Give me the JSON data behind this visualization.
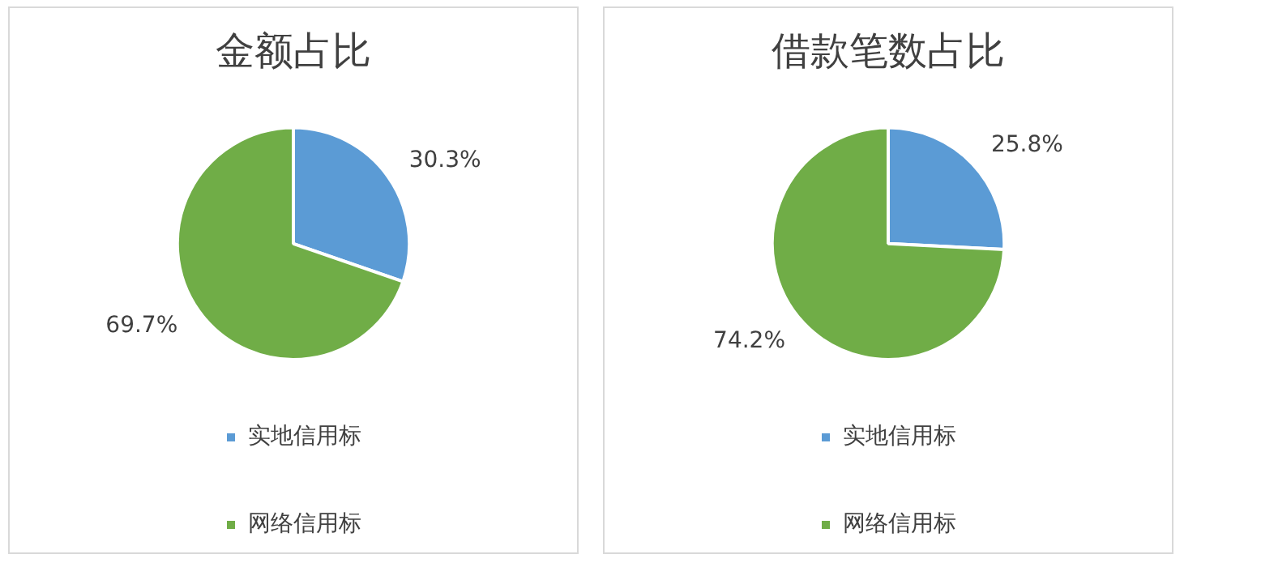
{
  "chart_data": [
    {
      "type": "pie",
      "title": "金额占比",
      "categories": [
        "实地信用标",
        "网络信用标"
      ],
      "values": [
        30.3,
        69.7
      ],
      "colors": [
        "#5b9bd5",
        "#70ad47"
      ],
      "value_labels": [
        "30.3%",
        "69.7%"
      ],
      "legend": "bottom"
    },
    {
      "type": "pie",
      "title": "借款笔数占比",
      "categories": [
        "实地信用标",
        "网络信用标"
      ],
      "values": [
        25.8,
        74.2
      ],
      "colors": [
        "#5b9bd5",
        "#70ad47"
      ],
      "value_labels": [
        "25.8%",
        "74.2%"
      ],
      "legend": "bottom"
    }
  ]
}
